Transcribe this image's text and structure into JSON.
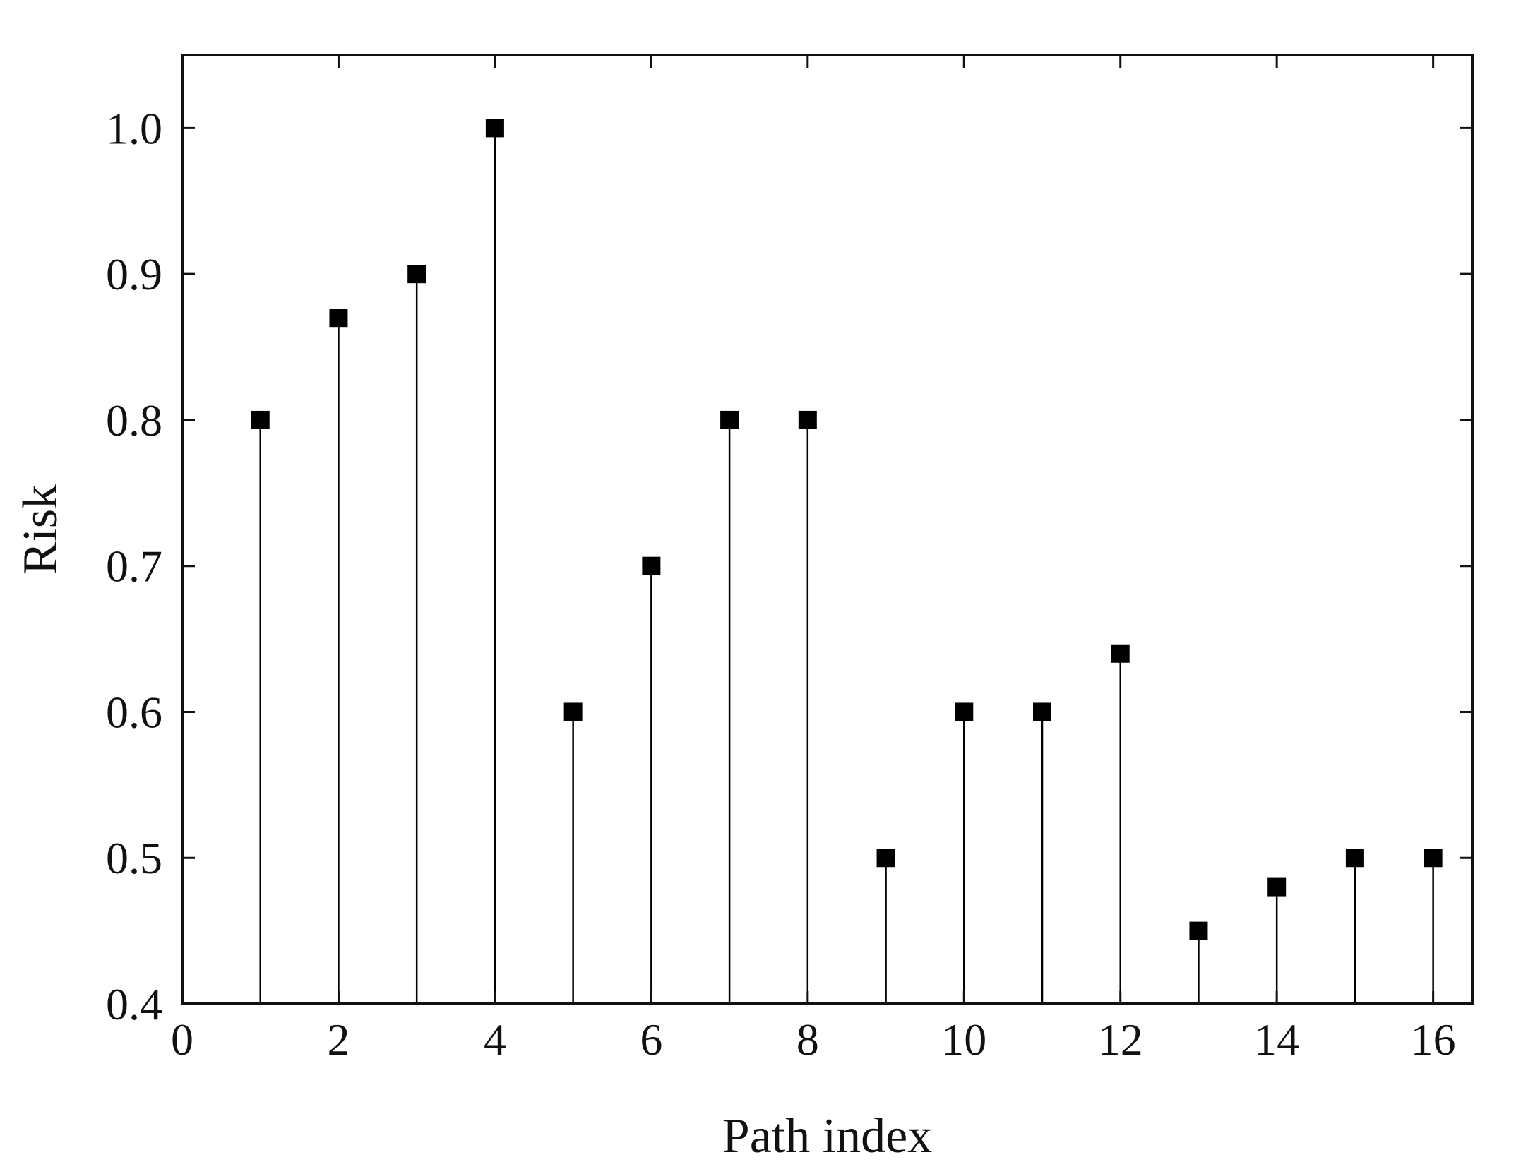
{
  "chart_data": {
    "type": "scatter",
    "style": "stem",
    "marker": "square",
    "xlabel": "Path index",
    "ylabel": "Risk",
    "xlim": [
      0,
      16.5
    ],
    "ylim": [
      0.4,
      1.05
    ],
    "x_ticks": [
      "0",
      "2",
      "4",
      "6",
      "8",
      "10",
      "12",
      "14",
      "16"
    ],
    "y_ticks": [
      "0.4",
      "0.5",
      "0.6",
      "0.7",
      "0.8",
      "0.9",
      "1.0"
    ],
    "x": [
      1,
      2,
      3,
      4,
      5,
      6,
      7,
      8,
      9,
      10,
      11,
      12,
      13,
      14,
      15,
      16
    ],
    "y": [
      0.8,
      0.87,
      0.9,
      1.0,
      0.6,
      0.7,
      0.8,
      0.8,
      0.5,
      0.6,
      0.6,
      0.64,
      0.45,
      0.48,
      0.5,
      0.5
    ],
    "grid": false,
    "colors": {
      "marker": "#000000",
      "axis": "#111111"
    }
  }
}
